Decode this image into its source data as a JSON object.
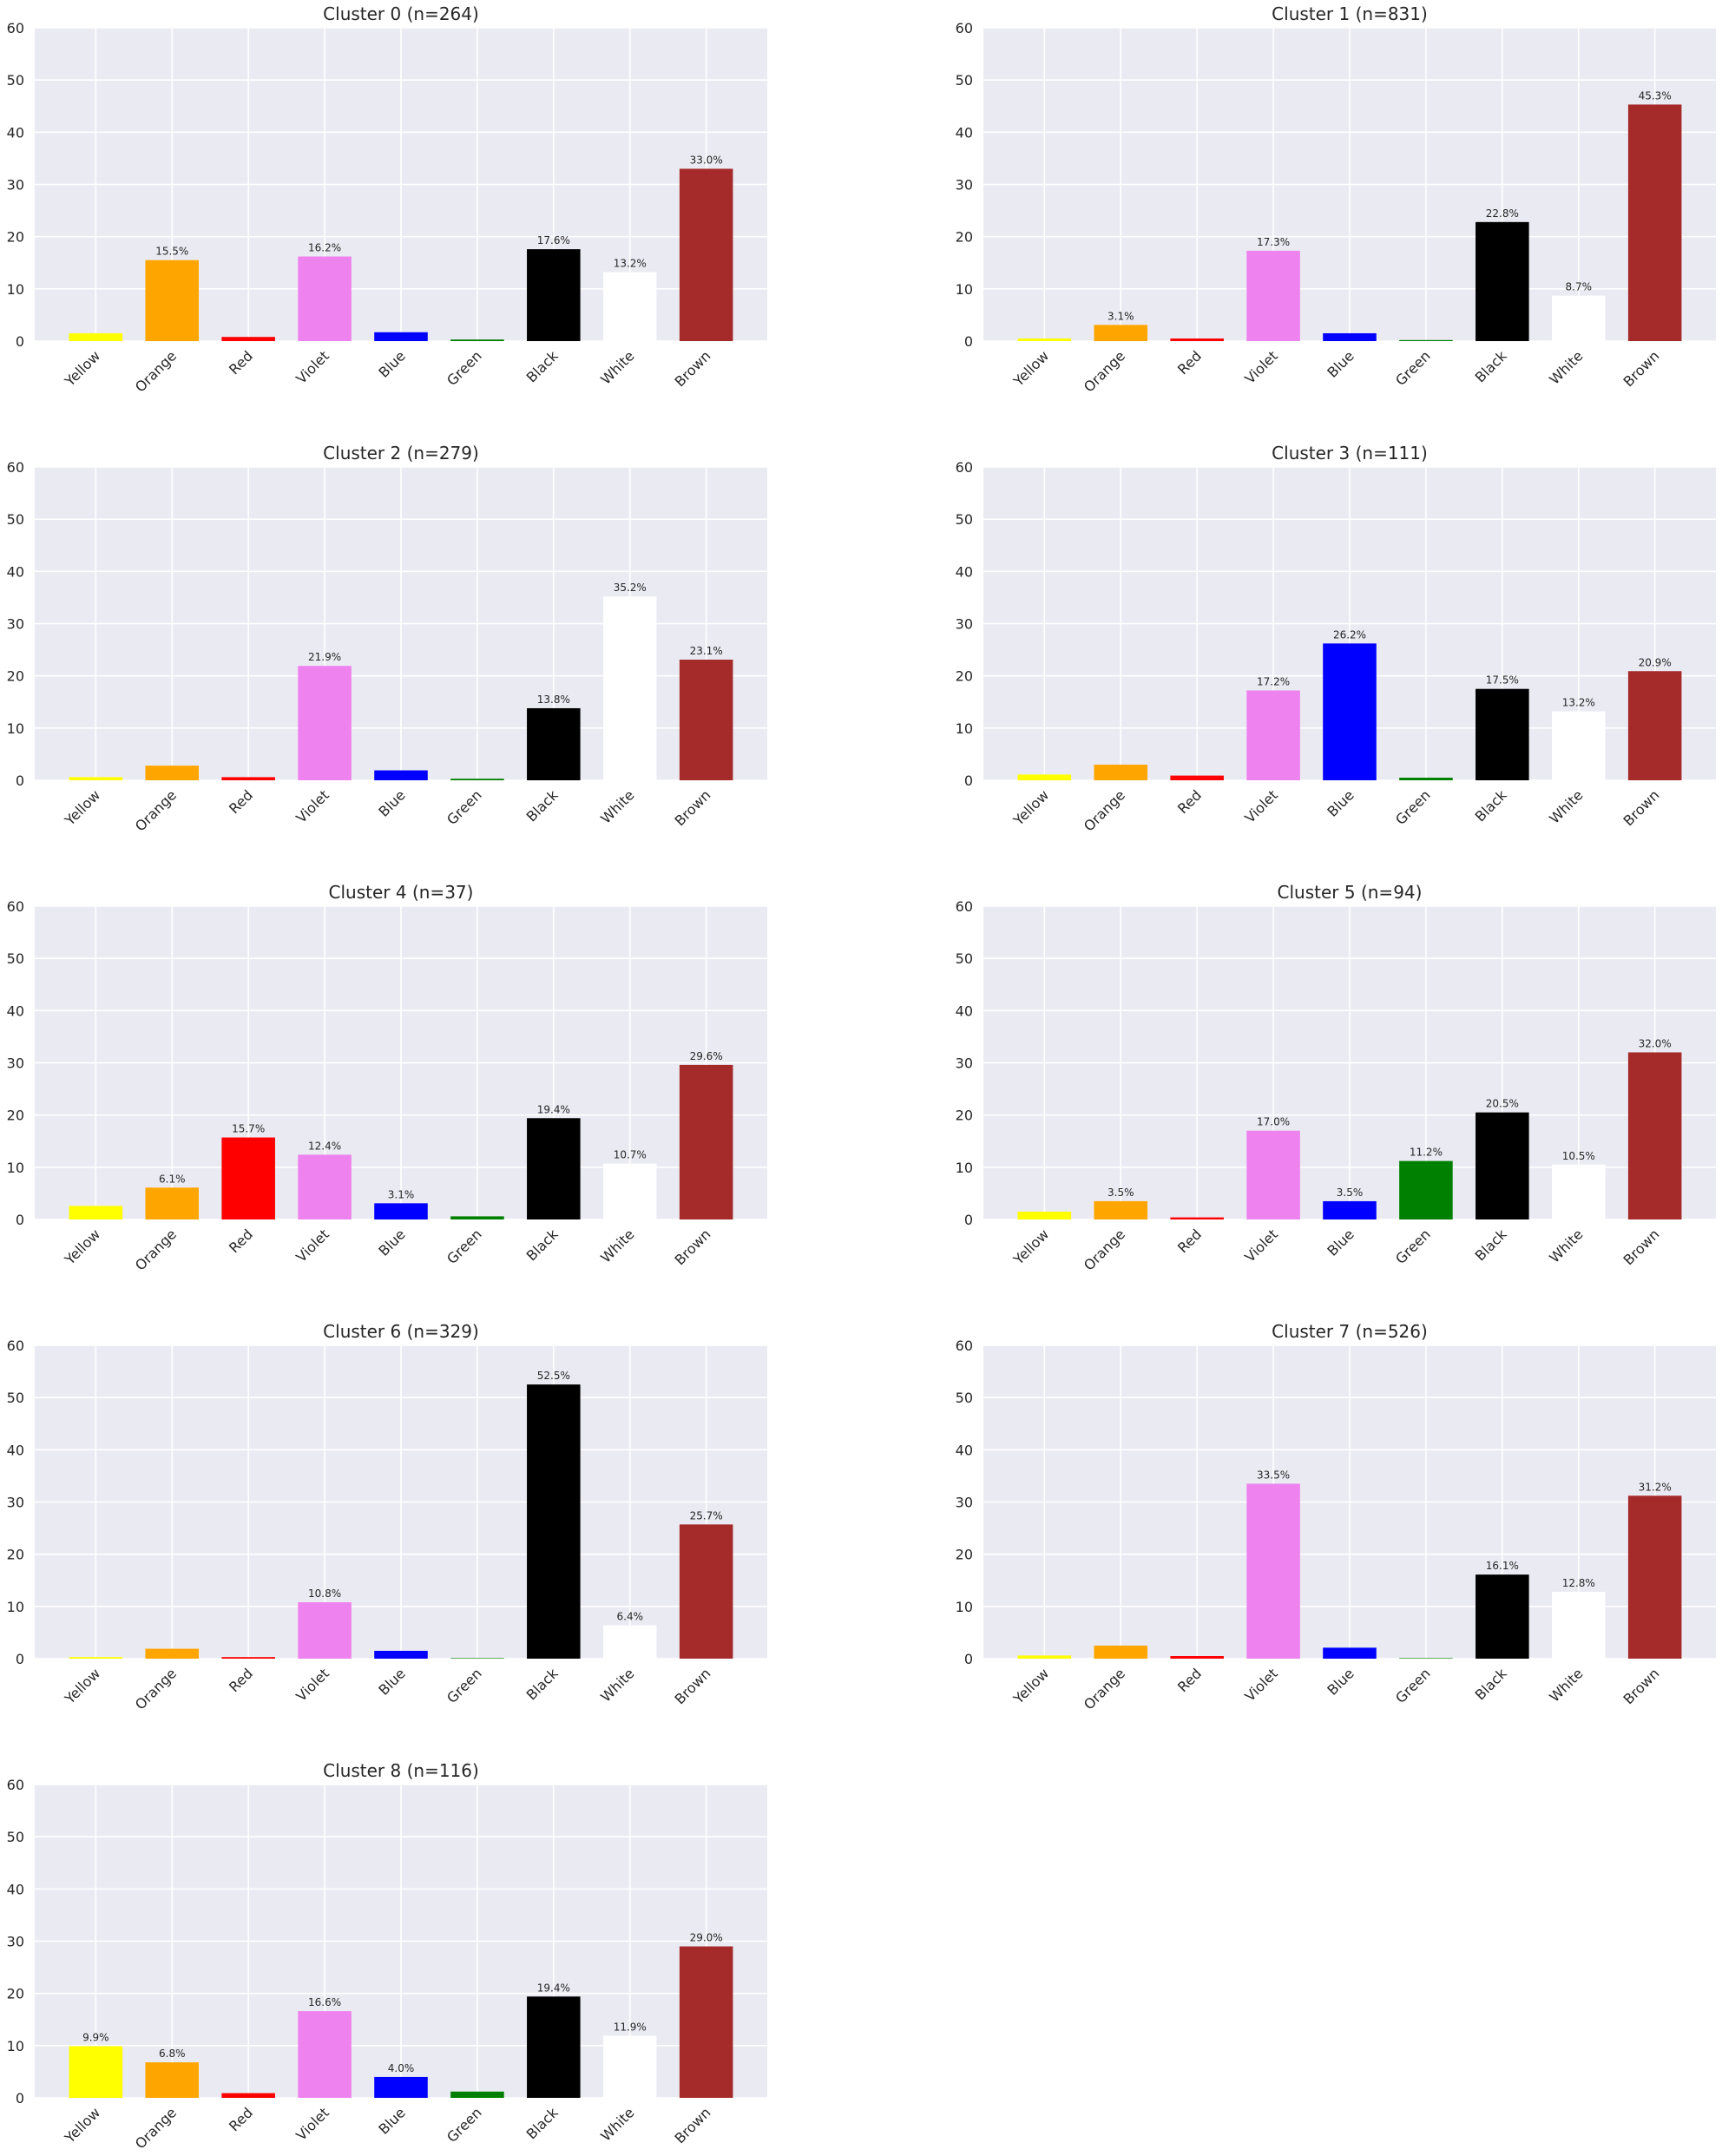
{
  "chart_data": [
    {
      "type": "bar",
      "title": "Cluster 0 (n=264)",
      "categories": [
        "Yellow",
        "Orange",
        "Red",
        "Violet",
        "Blue",
        "Green",
        "Black",
        "White",
        "Brown"
      ],
      "values": [
        1.5,
        15.5,
        0.8,
        16.2,
        1.7,
        0.3,
        17.6,
        13.2,
        33.0
      ],
      "data_labels": [
        "",
        "15.5%",
        "",
        "16.2%",
        "",
        "",
        "17.6%",
        "13.2%",
        "33.0%"
      ],
      "xlabel": "",
      "ylabel": "",
      "ylim": [
        0,
        60
      ],
      "yticks": [
        0,
        10,
        20,
        30,
        40,
        50,
        60
      ],
      "grid": true
    },
    {
      "type": "bar",
      "title": "Cluster 1 (n=831)",
      "categories": [
        "Yellow",
        "Orange",
        "Red",
        "Violet",
        "Blue",
        "Green",
        "Black",
        "White",
        "Brown"
      ],
      "values": [
        0.5,
        3.1,
        0.5,
        17.3,
        1.5,
        0.2,
        22.8,
        8.7,
        45.3
      ],
      "data_labels": [
        "",
        "3.1%",
        "",
        "17.3%",
        "",
        "",
        "22.8%",
        "8.7%",
        "45.3%"
      ],
      "xlabel": "",
      "ylabel": "",
      "ylim": [
        0,
        60
      ],
      "yticks": [
        0,
        10,
        20,
        30,
        40,
        50,
        60
      ],
      "grid": true
    },
    {
      "type": "bar",
      "title": "Cluster 2 (n=279)",
      "categories": [
        "Yellow",
        "Orange",
        "Red",
        "Violet",
        "Blue",
        "Green",
        "Black",
        "White",
        "Brown"
      ],
      "values": [
        0.6,
        2.8,
        0.6,
        21.9,
        1.9,
        0.3,
        13.8,
        35.2,
        23.1
      ],
      "data_labels": [
        "",
        "",
        "",
        "21.9%",
        "",
        "",
        "13.8%",
        "35.2%",
        "23.1%"
      ],
      "xlabel": "",
      "ylabel": "",
      "ylim": [
        0,
        60
      ],
      "yticks": [
        0,
        10,
        20,
        30,
        40,
        50,
        60
      ],
      "grid": true
    },
    {
      "type": "bar",
      "title": "Cluster 3 (n=111)",
      "categories": [
        "Yellow",
        "Orange",
        "Red",
        "Violet",
        "Blue",
        "Green",
        "Black",
        "White",
        "Brown"
      ],
      "values": [
        1.1,
        3.0,
        0.9,
        17.2,
        26.2,
        0.5,
        17.5,
        13.2,
        20.9
      ],
      "data_labels": [
        "",
        "",
        "",
        "17.2%",
        "26.2%",
        "",
        "17.5%",
        "13.2%",
        "20.9%"
      ],
      "xlabel": "",
      "ylabel": "",
      "ylim": [
        0,
        60
      ],
      "yticks": [
        0,
        10,
        20,
        30,
        40,
        50,
        60
      ],
      "grid": true
    },
    {
      "type": "bar",
      "title": "Cluster 4 (n=37)",
      "categories": [
        "Yellow",
        "Orange",
        "Red",
        "Violet",
        "Blue",
        "Green",
        "Black",
        "White",
        "Brown"
      ],
      "values": [
        2.6,
        6.1,
        15.7,
        12.4,
        3.1,
        0.6,
        19.4,
        10.7,
        29.6
      ],
      "data_labels": [
        "",
        "6.1%",
        "15.7%",
        "12.4%",
        "3.1%",
        "",
        "19.4%",
        "10.7%",
        "29.6%"
      ],
      "xlabel": "",
      "ylabel": "",
      "ylim": [
        0,
        60
      ],
      "yticks": [
        0,
        10,
        20,
        30,
        40,
        50,
        60
      ],
      "grid": true
    },
    {
      "type": "bar",
      "title": "Cluster 5 (n=94)",
      "categories": [
        "Yellow",
        "Orange",
        "Red",
        "Violet",
        "Blue",
        "Green",
        "Black",
        "White",
        "Brown"
      ],
      "values": [
        1.5,
        3.5,
        0.4,
        17.0,
        3.5,
        11.2,
        20.5,
        10.5,
        32.0
      ],
      "data_labels": [
        "",
        "3.5%",
        "",
        "17.0%",
        "3.5%",
        "11.2%",
        "20.5%",
        "10.5%",
        "32.0%"
      ],
      "xlabel": "",
      "ylabel": "",
      "ylim": [
        0,
        60
      ],
      "yticks": [
        0,
        10,
        20,
        30,
        40,
        50,
        60
      ],
      "grid": true
    },
    {
      "type": "bar",
      "title": "Cluster 6 (n=329)",
      "categories": [
        "Yellow",
        "Orange",
        "Red",
        "Violet",
        "Blue",
        "Green",
        "Black",
        "White",
        "Brown"
      ],
      "values": [
        0.3,
        1.9,
        0.3,
        10.8,
        1.5,
        0.1,
        52.5,
        6.4,
        25.7
      ],
      "data_labels": [
        "",
        "",
        "",
        "10.8%",
        "",
        "",
        "52.5%",
        "6.4%",
        "25.7%"
      ],
      "xlabel": "",
      "ylabel": "",
      "ylim": [
        0,
        60
      ],
      "yticks": [
        0,
        10,
        20,
        30,
        40,
        50,
        60
      ],
      "grid": true
    },
    {
      "type": "bar",
      "title": "Cluster 7 (n=526)",
      "categories": [
        "Yellow",
        "Orange",
        "Red",
        "Violet",
        "Blue",
        "Green",
        "Black",
        "White",
        "Brown"
      ],
      "values": [
        0.6,
        2.5,
        0.5,
        33.5,
        2.1,
        0.1,
        16.1,
        12.8,
        31.2
      ],
      "data_labels": [
        "",
        "",
        "",
        "33.5%",
        "",
        "",
        "16.1%",
        "12.8%",
        "31.2%"
      ],
      "xlabel": "",
      "ylabel": "",
      "ylim": [
        0,
        60
      ],
      "yticks": [
        0,
        10,
        20,
        30,
        40,
        50,
        60
      ],
      "grid": true
    },
    {
      "type": "bar",
      "title": "Cluster 8 (n=116)",
      "categories": [
        "Yellow",
        "Orange",
        "Red",
        "Violet",
        "Blue",
        "Green",
        "Black",
        "White",
        "Brown"
      ],
      "values": [
        9.9,
        6.8,
        0.9,
        16.6,
        4.0,
        1.2,
        19.4,
        11.9,
        29.0
      ],
      "data_labels": [
        "9.9%",
        "6.8%",
        "",
        "16.6%",
        "4.0%",
        "",
        "19.4%",
        "11.9%",
        "29.0%"
      ],
      "xlabel": "",
      "ylabel": "",
      "ylim": [
        0,
        60
      ],
      "yticks": [
        0,
        10,
        20,
        30,
        40,
        50,
        60
      ],
      "grid": true
    }
  ],
  "colors": {
    "Yellow": "#ffff00",
    "Orange": "#ffa500",
    "Red": "#ff0000",
    "Violet": "#ee82ee",
    "Blue": "#0000ff",
    "Green": "#008000",
    "Black": "#000000",
    "White": "#ffffff",
    "Brown": "#a52a2a",
    "axes_background": "#eaeaf2",
    "grid": "#ffffff",
    "text": "#262626"
  }
}
